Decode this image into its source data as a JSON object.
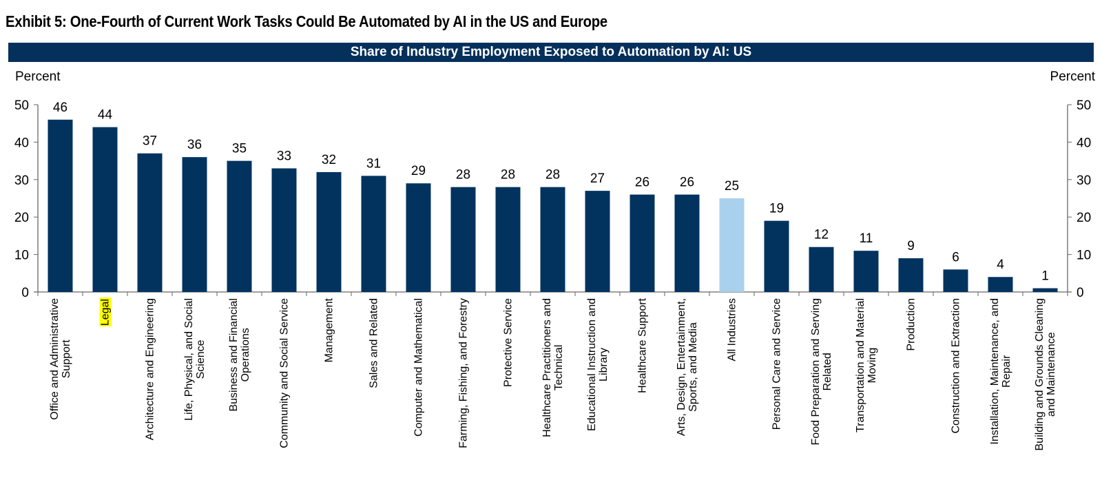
{
  "exhibit_title": "Exhibit 5: One-Fourth of Current Work Tasks Could Be Automated by AI in the US and Europe",
  "chart_data": {
    "type": "bar",
    "title": "Share of Industry Employment Exposed to Automation by AI: US",
    "ylabel_left": "Percent",
    "ylabel_right": "Percent",
    "ylim": [
      0,
      50
    ],
    "yticks": [
      0,
      10,
      20,
      30,
      40,
      50
    ],
    "grid": false,
    "categories": [
      [
        "Office and Administrative",
        "Support"
      ],
      [
        "Legal"
      ],
      [
        "Architecture and Engineering"
      ],
      [
        "Life, Physical, and Social",
        "Science"
      ],
      [
        "Business and Financial",
        "Operations"
      ],
      [
        "Community and Social Service"
      ],
      [
        "Management"
      ],
      [
        "Sales and Related"
      ],
      [
        "Computer and Mathematical"
      ],
      [
        "Farming, Fishing, and Forestry"
      ],
      [
        "Protective Service"
      ],
      [
        "Healthcare Practitioners and",
        "Technical"
      ],
      [
        "Educational Instruction and",
        "Library"
      ],
      [
        "Healthcare Support"
      ],
      [
        "Arts, Design, Entertainment,",
        "Sports, and Media"
      ],
      [
        "All Industries"
      ],
      [
        "Personal Care and Service"
      ],
      [
        "Food Preparation and Serving",
        "Related"
      ],
      [
        "Transportation and Material",
        "Moving"
      ],
      [
        "Production"
      ],
      [
        "Construction and Extraction"
      ],
      [
        "Installation, Maintenance, and",
        "Repair"
      ],
      [
        "Building and Grounds Cleaning",
        "and Maintenance"
      ]
    ],
    "values": [
      46,
      44,
      37,
      36,
      35,
      33,
      32,
      31,
      29,
      28,
      28,
      28,
      27,
      26,
      26,
      25,
      19,
      12,
      11,
      9,
      6,
      4,
      1
    ],
    "highlighted_category": "All Industries",
    "highlighted_label": "Legal",
    "colors": {
      "bar": "#02335f",
      "highlight_bar": "#a9d1ee",
      "label_highlight": "#ffff00",
      "banner": "#06305c"
    }
  }
}
